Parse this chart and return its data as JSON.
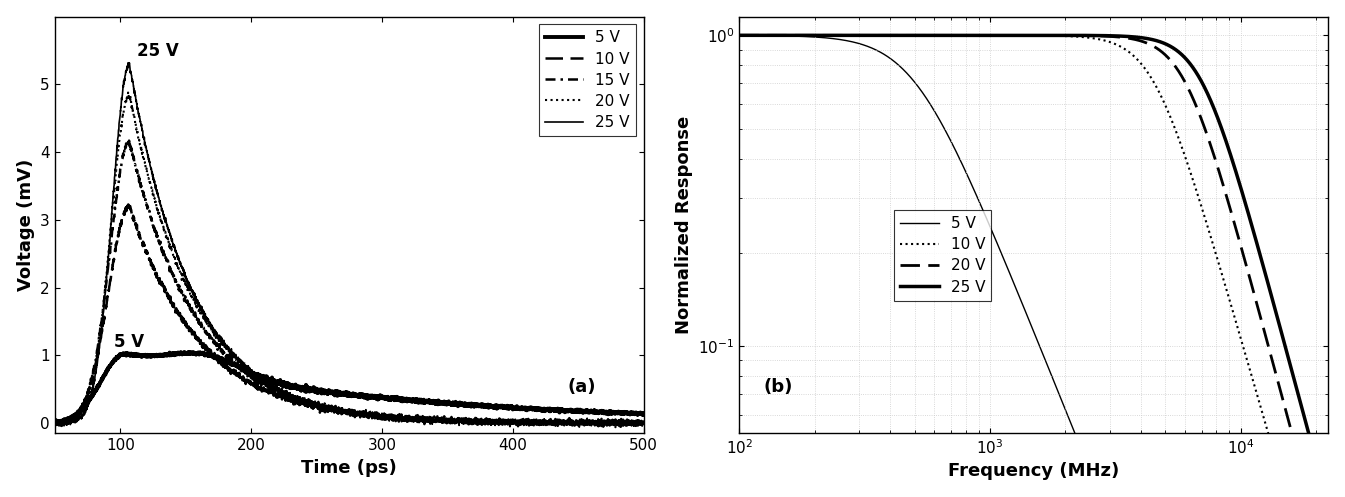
{
  "fig_width": 13.45,
  "fig_height": 4.97,
  "panel_a": {
    "xlabel": "Time (ps)",
    "ylabel": "Voltage (mV)",
    "xlim": [
      50,
      500
    ],
    "ylim": [
      -0.15,
      6.0
    ],
    "label_a": "(a)",
    "annotation_25V": "25 V",
    "annotation_5V": "5 V",
    "xticks": [
      100,
      200,
      300,
      400,
      500
    ],
    "yticks": [
      0,
      1,
      2,
      3,
      4,
      5
    ]
  },
  "panel_b": {
    "xlabel": "Frequency (MHz)",
    "ylabel": "Normalized Response",
    "label_b": "(b)",
    "xticks_log": [
      2,
      3,
      4
    ],
    "yticks_log": [
      -1,
      0
    ]
  },
  "bg_color": "white"
}
